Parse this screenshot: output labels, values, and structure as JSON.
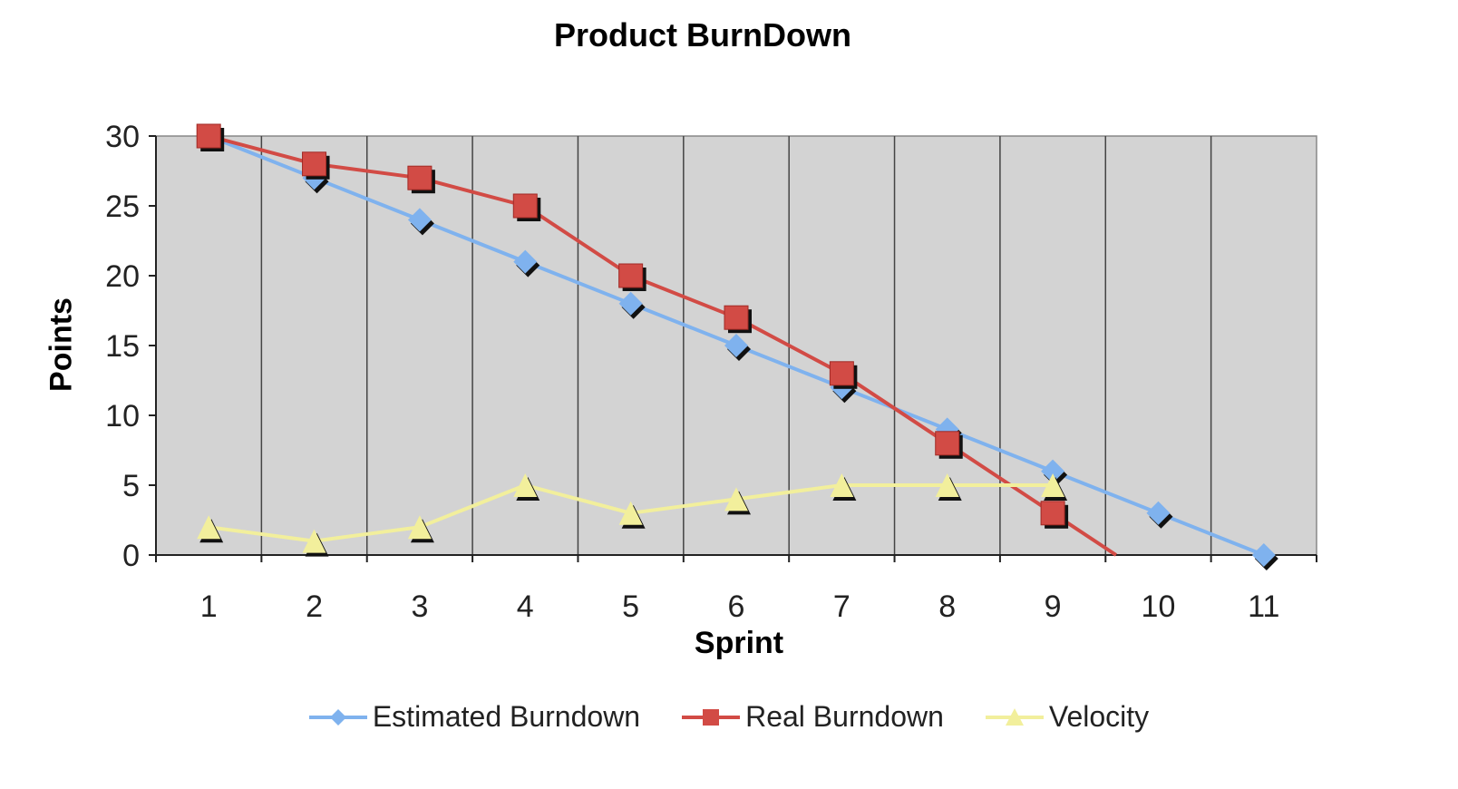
{
  "chart_data": {
    "type": "line",
    "title": "Product BurnDown",
    "xlabel": "Sprint",
    "ylabel": "Points",
    "categories": [
      "1",
      "2",
      "3",
      "4",
      "5",
      "6",
      "7",
      "8",
      "9",
      "10",
      "11"
    ],
    "ylim": [
      0,
      30
    ],
    "yticks": [
      "0",
      "5",
      "10",
      "15",
      "20",
      "25",
      "30"
    ],
    "grid": "vertical",
    "legend_position": "bottom",
    "series": [
      {
        "name": "Estimated Burndown",
        "marker": "diamond",
        "color": "#7fb2ee",
        "values": [
          30,
          27,
          24,
          21,
          18,
          15,
          12,
          9,
          6,
          3,
          0
        ]
      },
      {
        "name": "Real Burndown",
        "marker": "square",
        "color": "#d24b45",
        "values": [
          30,
          28,
          27,
          25,
          20,
          17,
          13,
          8,
          3,
          null,
          null
        ],
        "line_extends_to": [
          9.6,
          0
        ]
      },
      {
        "name": "Velocity",
        "marker": "triangle",
        "color": "#f2ef9c",
        "values": [
          2,
          1,
          2,
          5,
          3,
          4,
          5,
          5,
          5,
          null,
          null
        ]
      }
    ]
  }
}
